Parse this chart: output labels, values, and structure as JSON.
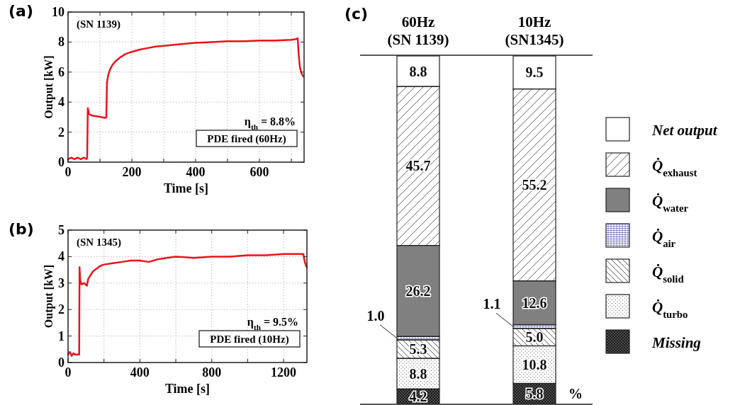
{
  "chart_data": [
    {
      "type": "line",
      "title": "(a)",
      "xlabel": "Time [s]",
      "ylabel": "Output [kW]",
      "xlim": [
        0,
        740
      ],
      "ylim": [
        0,
        10
      ],
      "xticks": [
        0,
        {
          "value": 100,
          "label": null
        },
        200,
        {
          "value": 300,
          "label": null
        },
        400,
        {
          "value": 500,
          "label": null
        },
        600,
        {
          "value": 700,
          "label": null
        }
      ],
      "yticks": [
        0,
        2,
        4,
        6,
        8,
        10
      ],
      "grid": true,
      "annotations": [
        "(SN 1139)",
        "η$_{th}$ = 8.8%",
        "PDE fired (60Hz)"
      ],
      "series": [
        {
          "color": "#e8141c",
          "x": [
            0,
            10,
            20,
            30,
            40,
            50,
            58,
            60,
            62,
            66,
            75,
            90,
            105,
            118,
            120,
            122,
            126,
            132,
            140,
            150,
            165,
            180,
            200,
            225,
            250,
            275,
            300,
            350,
            400,
            450,
            500,
            550,
            600,
            650,
            700,
            715,
            720,
            723,
            727,
            732,
            738
          ],
          "values": [
            0.2,
            0.3,
            0.2,
            0.3,
            0.2,
            0.3,
            0.2,
            0.3,
            3.6,
            3.2,
            3.1,
            3.05,
            3.0,
            2.95,
            3.0,
            5.3,
            5.8,
            6.2,
            6.5,
            6.75,
            7.0,
            7.2,
            7.35,
            7.5,
            7.6,
            7.7,
            7.75,
            7.85,
            7.95,
            8.0,
            8.05,
            8.05,
            8.1,
            8.1,
            8.15,
            8.2,
            8.25,
            7.2,
            6.3,
            5.9,
            5.7
          ]
        }
      ]
    },
    {
      "type": "line",
      "title": "(b)",
      "xlabel": "Time [s]",
      "ylabel": "Output [kW]",
      "xlim": [
        0,
        1330
      ],
      "ylim": [
        0,
        5
      ],
      "xticks": [
        0,
        {
          "value": 200,
          "label": null
        },
        400,
        {
          "value": 600,
          "label": null
        },
        800,
        {
          "value": 1000,
          "label": null
        },
        1200
      ],
      "yticks": [
        0,
        1,
        2,
        3,
        4,
        5
      ],
      "grid": true,
      "annotations": [
        "(SN 1345)",
        "η$_{th}$ = 9.5%",
        "PDE fired (10Hz)"
      ],
      "series": [
        {
          "color": "#e8141c",
          "x": [
            0,
            10,
            20,
            30,
            40,
            50,
            62,
            64,
            68,
            75,
            90,
            105,
            112,
            125,
            140,
            160,
            180,
            200,
            250,
            300,
            350,
            400,
            450,
            500,
            550,
            600,
            700,
            800,
            900,
            1000,
            1100,
            1200,
            1250,
            1300,
            1310,
            1318,
            1325,
            1330
          ],
          "values": [
            0.3,
            0.4,
            0.25,
            0.35,
            0.3,
            0.3,
            0.3,
            3.6,
            3.1,
            2.95,
            3.0,
            2.9,
            3.15,
            3.3,
            3.45,
            3.55,
            3.65,
            3.7,
            3.75,
            3.8,
            3.85,
            3.85,
            3.8,
            3.9,
            3.95,
            4.0,
            3.95,
            4.0,
            4.0,
            4.05,
            4.05,
            4.1,
            4.1,
            4.1,
            4.1,
            3.8,
            3.65,
            3.6
          ]
        }
      ]
    },
    {
      "type": "bar",
      "title": "(c)",
      "stacked": true,
      "legend": "right",
      "annotations": [
        "%"
      ],
      "categories": [
        "60Hz (SN 1139)",
        "10Hz (SN1345)"
      ],
      "series": [
        {
          "name": "Missing",
          "color": "#1a1a1a",
          "values": [
            4.2,
            5.8
          ],
          "value_labels": [
            "4.2",
            "5.8"
          ]
        },
        {
          "name": "Q̇$_{turbo}$",
          "color": "#ffffff",
          "values": [
            8.8,
            10.8
          ],
          "value_labels": [
            "8.8",
            "10.8"
          ]
        },
        {
          "name": "Q̇$_{solid}$",
          "color": "#ffffff",
          "values": [
            5.3,
            5.0
          ],
          "value_labels": [
            "5.3",
            "5.0"
          ]
        },
        {
          "name": "Q̇$_{air}$",
          "color": "#ffffff",
          "values": [
            1.0,
            1.1
          ],
          "value_labels": [
            "1.0",
            "1.1"
          ]
        },
        {
          "name": "Q̇$_{water}$",
          "color": "#808080",
          "values": [
            26.2,
            12.6
          ],
          "value_labels": [
            "26.2",
            "12.6"
          ]
        },
        {
          "name": "Q̇$_{exhaust}$",
          "color": "#ffffff",
          "values": [
            45.7,
            55.2
          ],
          "value_labels": [
            "45.7",
            "55.2"
          ]
        },
        {
          "name": "Net output",
          "color": "#ffffff",
          "values": [
            8.8,
            9.5
          ],
          "value_labels": [
            "8.8",
            "9.5"
          ]
        }
      ]
    }
  ]
}
